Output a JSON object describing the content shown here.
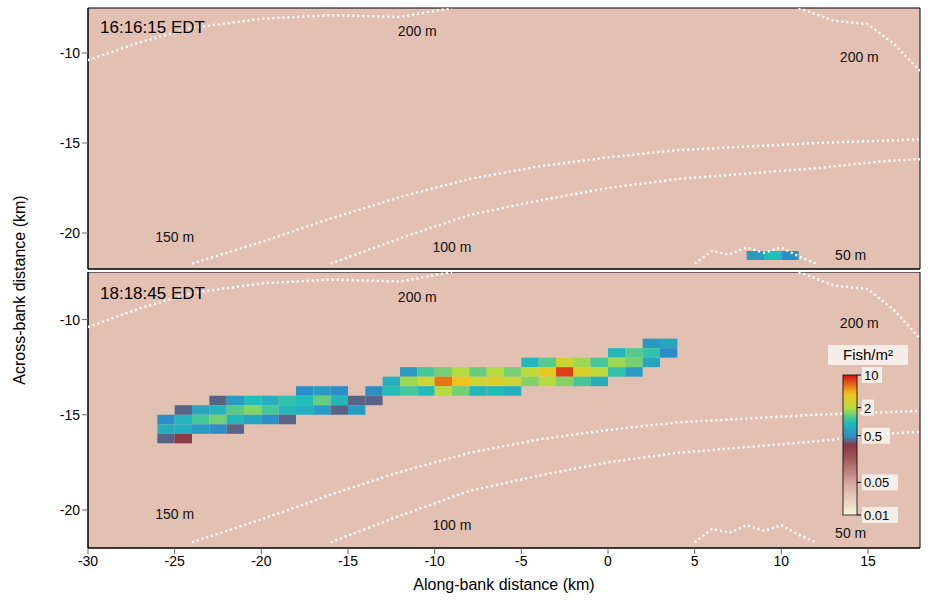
{
  "chart_data": [
    {
      "type": "heatmap",
      "title": "16:16:15 EDT",
      "y_label": "Across-bank distance (km)",
      "xlim": [
        -30,
        18
      ],
      "xticks": [
        -30,
        -25,
        -20,
        -15,
        -10,
        -5,
        0,
        5,
        10,
        15
      ],
      "ylim": [
        -22,
        -7.5
      ],
      "yticks": [
        -20,
        -15,
        -10
      ],
      "tick_labels": "y",
      "background_density": 0.03,
      "cell_width": 1,
      "cell_height": 0.5,
      "cells": [
        [
          8.5,
          -21.25,
          0.6
        ],
        [
          9.5,
          -21.25,
          1.0
        ],
        [
          10.5,
          -21.25,
          0.5
        ]
      ],
      "contours": [
        {
          "label": "200 m",
          "label_x": -11,
          "label_y": -8.8,
          "color": "#ffffff",
          "line_style": "dotted",
          "x": [
            -30,
            -27,
            -24,
            -20,
            -16,
            -12,
            -9
          ],
          "y": [
            -10.4,
            -9.4,
            -8.6,
            -8.1,
            -7.9,
            -8.0,
            -7.5
          ]
        },
        {
          "label": "200 m",
          "label_x": 14.5,
          "label_y": -10.2,
          "color": "#ffffff",
          "line_style": "dotted",
          "x": [
            11,
            13,
            15,
            16.5,
            18
          ],
          "y": [
            -7.5,
            -8.2,
            -8.4,
            -9.5,
            -11
          ]
        },
        {
          "label": "150 m",
          "label_x": -25,
          "label_y": -20.2,
          "color": "#ffffff",
          "line_style": "dotted",
          "x": [
            -24,
            -20,
            -16,
            -12,
            -8,
            -4,
            0,
            4,
            8,
            12,
            18
          ],
          "y": [
            -21.7,
            -20.5,
            -19.2,
            -18,
            -17,
            -16.3,
            -15.8,
            -15.4,
            -15.2,
            -15,
            -14.8
          ]
        },
        {
          "label": "100 m",
          "label_x": -9,
          "label_y": -20.8,
          "color": "#ffffff",
          "line_style": "dotted",
          "x": [
            -16,
            -12,
            -8,
            -4,
            0,
            4,
            8,
            12,
            16,
            18
          ],
          "y": [
            -21.7,
            -20.3,
            -19,
            -18.2,
            -17.5,
            -17,
            -16.7,
            -16.4,
            -16,
            -15.9
          ]
        },
        {
          "label": "50 m",
          "label_x": 14,
          "label_y": -21.2,
          "color": "#ffffff",
          "line_style": "dotted",
          "x": [
            5,
            6,
            7,
            8,
            9,
            10,
            11,
            12
          ],
          "y": [
            -21.7,
            -21,
            -21.2,
            -20.8,
            -21.1,
            -20.8,
            -21.3,
            -21.7
          ]
        }
      ]
    },
    {
      "type": "heatmap",
      "title": "18:18:45 EDT",
      "x_label": "Along-bank distance (km)",
      "xlim": [
        -30,
        18
      ],
      "xticks": [
        -30,
        -25,
        -20,
        -15,
        -10,
        -5,
        0,
        5,
        10,
        15
      ],
      "ylim": [
        -22,
        -7.5
      ],
      "yticks": [
        -20,
        -15,
        -10
      ],
      "background_density": 0.03,
      "cell_width": 1,
      "cell_height": 0.5,
      "cells": [
        [
          -25.5,
          -15.25,
          0.5
        ],
        [
          -25.5,
          -15.75,
          0.8
        ],
        [
          -25.5,
          -16.25,
          0.4
        ],
        [
          -24.5,
          -14.75,
          0.4
        ],
        [
          -24.5,
          -15.25,
          0.9
        ],
        [
          -24.5,
          -15.75,
          0.8
        ],
        [
          -24.5,
          -16.25,
          0.3
        ],
        [
          -23.5,
          -14.75,
          0.7
        ],
        [
          -23.5,
          -15.25,
          1.2
        ],
        [
          -23.5,
          -15.75,
          0.6
        ],
        [
          -22.5,
          -14.25,
          0.4
        ],
        [
          -22.5,
          -14.75,
          0.9
        ],
        [
          -22.5,
          -15.25,
          1.5
        ],
        [
          -22.5,
          -15.75,
          0.5
        ],
        [
          -21.5,
          -14.25,
          0.6
        ],
        [
          -21.5,
          -14.75,
          1.3
        ],
        [
          -21.5,
          -15.25,
          0.9
        ],
        [
          -21.5,
          -15.75,
          0.4
        ],
        [
          -20.5,
          -14.25,
          1.0
        ],
        [
          -20.5,
          -14.75,
          1.6
        ],
        [
          -20.5,
          -15.25,
          0.7
        ],
        [
          -19.5,
          -14.25,
          0.8
        ],
        [
          -19.5,
          -14.75,
          1.2
        ],
        [
          -19.5,
          -15.25,
          0.5
        ],
        [
          -18.5,
          -14.25,
          1.1
        ],
        [
          -18.5,
          -14.75,
          0.9
        ],
        [
          -18.5,
          -15.25,
          0.4
        ],
        [
          -17.5,
          -13.75,
          0.5
        ],
        [
          -17.5,
          -14.25,
          1.0
        ],
        [
          -17.5,
          -14.75,
          0.8
        ],
        [
          -16.5,
          -13.75,
          0.6
        ],
        [
          -16.5,
          -14.25,
          1.4
        ],
        [
          -16.5,
          -14.75,
          0.6
        ],
        [
          -15.5,
          -13.75,
          0.5
        ],
        [
          -15.5,
          -14.25,
          0.9
        ],
        [
          -15.5,
          -14.75,
          0.4
        ],
        [
          -14.5,
          -14.25,
          0.4
        ],
        [
          -14.5,
          -14.75,
          0.6
        ],
        [
          -13.5,
          -13.75,
          0.5
        ],
        [
          -13.5,
          -14.25,
          0.4
        ],
        [
          -12.5,
          -13.25,
          0.8
        ],
        [
          -12.5,
          -13.75,
          1.0
        ],
        [
          -11.5,
          -12.75,
          0.6
        ],
        [
          -11.5,
          -13.25,
          1.8
        ],
        [
          -11.5,
          -13.75,
          1.2
        ],
        [
          -10.5,
          -12.75,
          1.2
        ],
        [
          -10.5,
          -13.25,
          2.5
        ],
        [
          -10.5,
          -13.75,
          1.0
        ],
        [
          -9.5,
          -12.75,
          1.5
        ],
        [
          -9.5,
          -13.25,
          6
        ],
        [
          -9.5,
          -13.75,
          2
        ],
        [
          -8.5,
          -12.75,
          2
        ],
        [
          -8.5,
          -13.25,
          4
        ],
        [
          -8.5,
          -13.75,
          1.5
        ],
        [
          -7.5,
          -12.75,
          1.4
        ],
        [
          -7.5,
          -13.25,
          2.5
        ],
        [
          -7.5,
          -13.75,
          0.9
        ],
        [
          -6.5,
          -12.75,
          2
        ],
        [
          -6.5,
          -13.25,
          3
        ],
        [
          -6.5,
          -13.75,
          1
        ],
        [
          -5.5,
          -12.75,
          1.5
        ],
        [
          -5.5,
          -13.25,
          2.5
        ],
        [
          -5.5,
          -13.75,
          0.8
        ],
        [
          -4.5,
          -12.25,
          0.9
        ],
        [
          -4.5,
          -12.75,
          2.2
        ],
        [
          -4.5,
          -13.25,
          1.6
        ],
        [
          -3.5,
          -12.25,
          1.3
        ],
        [
          -3.5,
          -12.75,
          3.5
        ],
        [
          -3.5,
          -13.25,
          2
        ],
        [
          -2.5,
          -12.25,
          2.5
        ],
        [
          -2.5,
          -12.75,
          8
        ],
        [
          -2.5,
          -13.25,
          1.6
        ],
        [
          -1.5,
          -12.25,
          1.8
        ],
        [
          -1.5,
          -12.75,
          3
        ],
        [
          -1.5,
          -13.25,
          1.2
        ],
        [
          -0.5,
          -12.25,
          1.2
        ],
        [
          -0.5,
          -12.75,
          2.2
        ],
        [
          -0.5,
          -13.25,
          0.8
        ],
        [
          0.5,
          -11.75,
          0.9
        ],
        [
          0.5,
          -12.25,
          1.8
        ],
        [
          0.5,
          -12.75,
          1.1
        ],
        [
          1.5,
          -11.75,
          1.3
        ],
        [
          1.5,
          -12.25,
          1.5
        ],
        [
          1.5,
          -12.75,
          0.6
        ],
        [
          2.5,
          -11.25,
          0.6
        ],
        [
          2.5,
          -11.75,
          1.1
        ],
        [
          2.5,
          -12.25,
          0.7
        ],
        [
          3.5,
          -11.25,
          0.7
        ],
        [
          3.5,
          -11.75,
          0.5
        ]
      ],
      "contours": [
        {
          "label": "200 m",
          "label_x": -11,
          "label_y": -8.8,
          "color": "#ffffff",
          "line_style": "dotted",
          "x": [
            -30,
            -27,
            -24,
            -20,
            -16,
            -12,
            -9
          ],
          "y": [
            -10.4,
            -9.4,
            -8.6,
            -8.1,
            -7.9,
            -8.0,
            -7.5
          ]
        },
        {
          "label": "200 m",
          "label_x": 14.5,
          "label_y": -10.2,
          "color": "#ffffff",
          "line_style": "dotted",
          "x": [
            11,
            13,
            15,
            16.5,
            18
          ],
          "y": [
            -7.5,
            -8.2,
            -8.4,
            -9.5,
            -11
          ]
        },
        {
          "label": "150 m",
          "label_x": -25,
          "label_y": -20.2,
          "color": "#ffffff",
          "line_style": "dotted",
          "x": [
            -24,
            -20,
            -16,
            -12,
            -8,
            -4,
            0,
            4,
            8,
            12,
            18
          ],
          "y": [
            -21.7,
            -20.5,
            -19.2,
            -18,
            -17,
            -16.3,
            -15.8,
            -15.4,
            -15.2,
            -15,
            -14.8
          ]
        },
        {
          "label": "100 m",
          "label_x": -9,
          "label_y": -20.8,
          "color": "#ffffff",
          "line_style": "dotted",
          "x": [
            -16,
            -12,
            -8,
            -4,
            0,
            4,
            8,
            12,
            16,
            18
          ],
          "y": [
            -21.7,
            -20.3,
            -19,
            -18.2,
            -17.5,
            -17,
            -16.7,
            -16.4,
            -16,
            -15.9
          ]
        },
        {
          "label": "50 m",
          "label_x": 14,
          "label_y": -21.2,
          "color": "#ffffff",
          "line_style": "dotted",
          "x": [
            5,
            6,
            7,
            8,
            9,
            10,
            11,
            12
          ],
          "y": [
            -21.7,
            -21,
            -21.2,
            -20.8,
            -21.1,
            -20.8,
            -21.3,
            -21.7
          ]
        }
      ],
      "colorbar": {
        "label": "Fish/m²",
        "range": [
          0.01,
          10
        ],
        "ticks": [
          0.01,
          0.05,
          0.5,
          2,
          10
        ],
        "log": true
      }
    }
  ]
}
